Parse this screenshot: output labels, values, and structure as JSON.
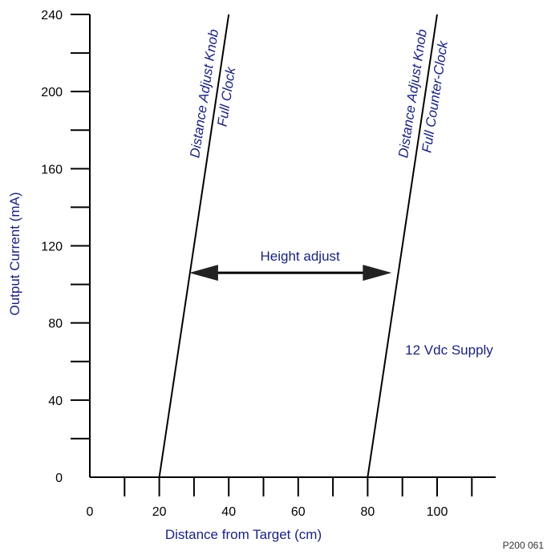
{
  "chart_data": {
    "type": "line",
    "xlabel": "Distance from Target (cm)",
    "ylabel": "Output Current (mA)",
    "xlim": [
      0,
      100
    ],
    "ylim": [
      0,
      240
    ],
    "x_ticks": [
      0,
      20,
      40,
      60,
      80,
      100
    ],
    "y_ticks": [
      0,
      40,
      80,
      120,
      160,
      200,
      240
    ],
    "x_minor_step": 10,
    "y_minor_step": 20,
    "series": [
      {
        "label_lines": [
          "Distance Adjust Knob",
          "Full Clock"
        ],
        "points": [
          [
            20,
            0
          ],
          [
            40,
            240
          ]
        ]
      },
      {
        "label_lines": [
          "Distance Adjust Knob",
          "Full Counter-Clock"
        ],
        "points": [
          [
            80,
            0
          ],
          [
            100,
            240
          ]
        ]
      }
    ],
    "annotations": {
      "arrow_label": "Height adjust",
      "arrow_from": [
        30,
        106
      ],
      "arrow_to": [
        86,
        106
      ],
      "note": "12 Vdc Supply"
    }
  },
  "figure_id": "P200 061",
  "colors": {
    "text": "#1a237e",
    "axis": "#000000",
    "line": "#000000"
  }
}
